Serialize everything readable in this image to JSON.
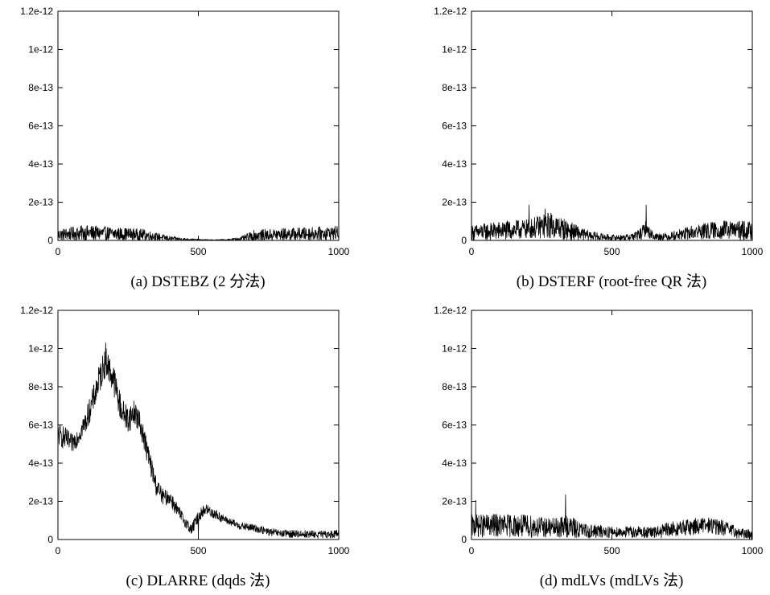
{
  "chart_data": [
    {
      "type": "line",
      "caption": "(a) DSTEBZ (2 分法)",
      "xlim": [
        0,
        1000
      ],
      "ylim": [
        0,
        1.2e-12
      ],
      "xticks": [
        "0",
        "500",
        "1000"
      ],
      "yticks": [
        "0",
        "2e-13",
        "4e-13",
        "6e-13",
        "8e-13",
        "1e-12",
        "1.2e-12"
      ],
      "grid": false,
      "series": [
        {
          "x": [
            0,
            100,
            200,
            300,
            350,
            400,
            450,
            500,
            550,
            600,
            650,
            700,
            800,
            900,
            1000
          ],
          "y": [
            3e-14,
            4e-14,
            3.5e-14,
            3e-14,
            2e-14,
            1e-14,
            6e-15,
            3e-15,
            2e-15,
            3e-15,
            8e-15,
            2.5e-14,
            3.2e-14,
            3.5e-14,
            4e-14
          ],
          "noise": [
            3e-14,
            4e-14,
            3.5e-14,
            3e-14,
            2e-14,
            1.2e-14,
            7e-15,
            4e-15,
            2e-15,
            4e-15,
            1e-14,
            3e-14,
            3.2e-14,
            3.5e-14,
            3.5e-14
          ]
        }
      ]
    },
    {
      "type": "line",
      "caption": "(b) DSTERF (root-free QR 法)",
      "xlim": [
        0,
        1000
      ],
      "ylim": [
        0,
        1.2e-12
      ],
      "xticks": [
        "0",
        "500",
        "1000"
      ],
      "yticks": [
        "0",
        "2e-13",
        "4e-13",
        "6e-13",
        "8e-13",
        "1e-12",
        "1.2e-12"
      ],
      "grid": false,
      "series": [
        {
          "x": [
            0,
            100,
            200,
            280,
            350,
            400,
            450,
            500,
            550,
            600,
            620,
            650,
            700,
            800,
            900,
            1000
          ],
          "y": [
            4e-14,
            5e-14,
            6e-14,
            8e-14,
            5e-14,
            3e-14,
            2e-14,
            1.5e-14,
            1.5e-14,
            3e-14,
            6e-14,
            2e-14,
            2e-14,
            4.5e-14,
            5.5e-14,
            5e-14
          ],
          "noise": [
            4e-14,
            5e-14,
            5e-14,
            7e-14,
            5e-14,
            3e-14,
            2e-14,
            1.5e-14,
            1.5e-14,
            3e-14,
            4e-14,
            2e-14,
            2e-14,
            4e-14,
            5e-14,
            5e-14
          ],
          "spikes": [
            [
              205,
              1.85e-13
            ],
            [
              262,
              1.65e-13
            ],
            [
              622,
              1.85e-13
            ]
          ]
        }
      ]
    },
    {
      "type": "line",
      "caption": "(c) DLARRE (dqds 法)",
      "xlim": [
        0,
        1000
      ],
      "ylim": [
        0,
        1.2e-12
      ],
      "xticks": [
        "0",
        "500",
        "1000"
      ],
      "yticks": [
        "0",
        "2e-13",
        "4e-13",
        "6e-13",
        "8e-13",
        "1e-12",
        "1.2e-12"
      ],
      "grid": false,
      "series": [
        {
          "x": [
            0,
            25,
            50,
            75,
            100,
            125,
            150,
            170,
            200,
            225,
            250,
            275,
            300,
            325,
            350,
            375,
            400,
            425,
            450,
            475,
            500,
            525,
            550,
            600,
            650,
            700,
            750,
            800,
            850,
            900,
            950,
            1000
          ],
          "y": [
            5.5e-13,
            5.3e-13,
            5e-13,
            5.5e-13,
            6.2e-13,
            7.3e-13,
            8.5e-13,
            9.4e-13,
            8.3e-13,
            6.8e-13,
            6.3e-13,
            6.7e-13,
            5.7e-13,
            4.2e-13,
            2.8e-13,
            2.2e-13,
            2.2e-13,
            1.5e-13,
            1e-13,
            5e-14,
            1.2e-13,
            1.6e-13,
            1.4e-13,
            1e-13,
            7e-14,
            6e-14,
            4e-14,
            3e-14,
            3e-14,
            2.8e-14,
            2.5e-14,
            3e-14
          ],
          "noise": [
            6e-14,
            6e-14,
            5e-14,
            5e-14,
            6e-14,
            7e-14,
            8e-14,
            8e-14,
            8e-14,
            7e-14,
            7e-14,
            7e-14,
            6e-14,
            6e-14,
            5e-14,
            4e-14,
            4e-14,
            4e-14,
            3e-14,
            3e-14,
            3e-14,
            3e-14,
            3e-14,
            2e-14,
            2e-14,
            2e-14,
            2e-14,
            2e-14,
            2e-14,
            2e-14,
            2e-14,
            2e-14
          ],
          "spikes": [
            [
              170,
              1.03e-12
            ],
            [
              495,
              1.3e-13
            ],
            [
              500,
              2.5e-15
            ]
          ]
        }
      ]
    },
    {
      "type": "line",
      "caption": "(d) mdLVs (mdLVs 法)",
      "xlim": [
        0,
        1000
      ],
      "ylim": [
        0,
        1.2e-12
      ],
      "xticks": [
        "0",
        "500",
        "1000"
      ],
      "yticks": [
        "0",
        "2e-13",
        "4e-13",
        "6e-13",
        "8e-13",
        "1e-12",
        "1.2e-12"
      ],
      "grid": false,
      "series": [
        {
          "x": [
            0,
            100,
            200,
            300,
            340,
            400,
            500,
            600,
            650,
            700,
            800,
            850,
            900,
            950,
            1000
          ],
          "y": [
            7e-14,
            7.5e-14,
            7e-14,
            6e-14,
            7e-14,
            4.5e-14,
            4e-14,
            4e-14,
            3.5e-14,
            5e-14,
            7e-14,
            7.5e-14,
            6e-14,
            3.5e-14,
            2.5e-14
          ],
          "noise": [
            6e-14,
            6e-14,
            6e-14,
            5e-14,
            6e-14,
            4e-14,
            3e-14,
            3e-14,
            3e-14,
            4e-14,
            4.5e-14,
            4.5e-14,
            4e-14,
            3e-14,
            2.5e-14
          ],
          "spikes": [
            [
              335,
              2.35e-13
            ],
            [
              15,
              2.05e-13
            ]
          ]
        }
      ]
    }
  ]
}
